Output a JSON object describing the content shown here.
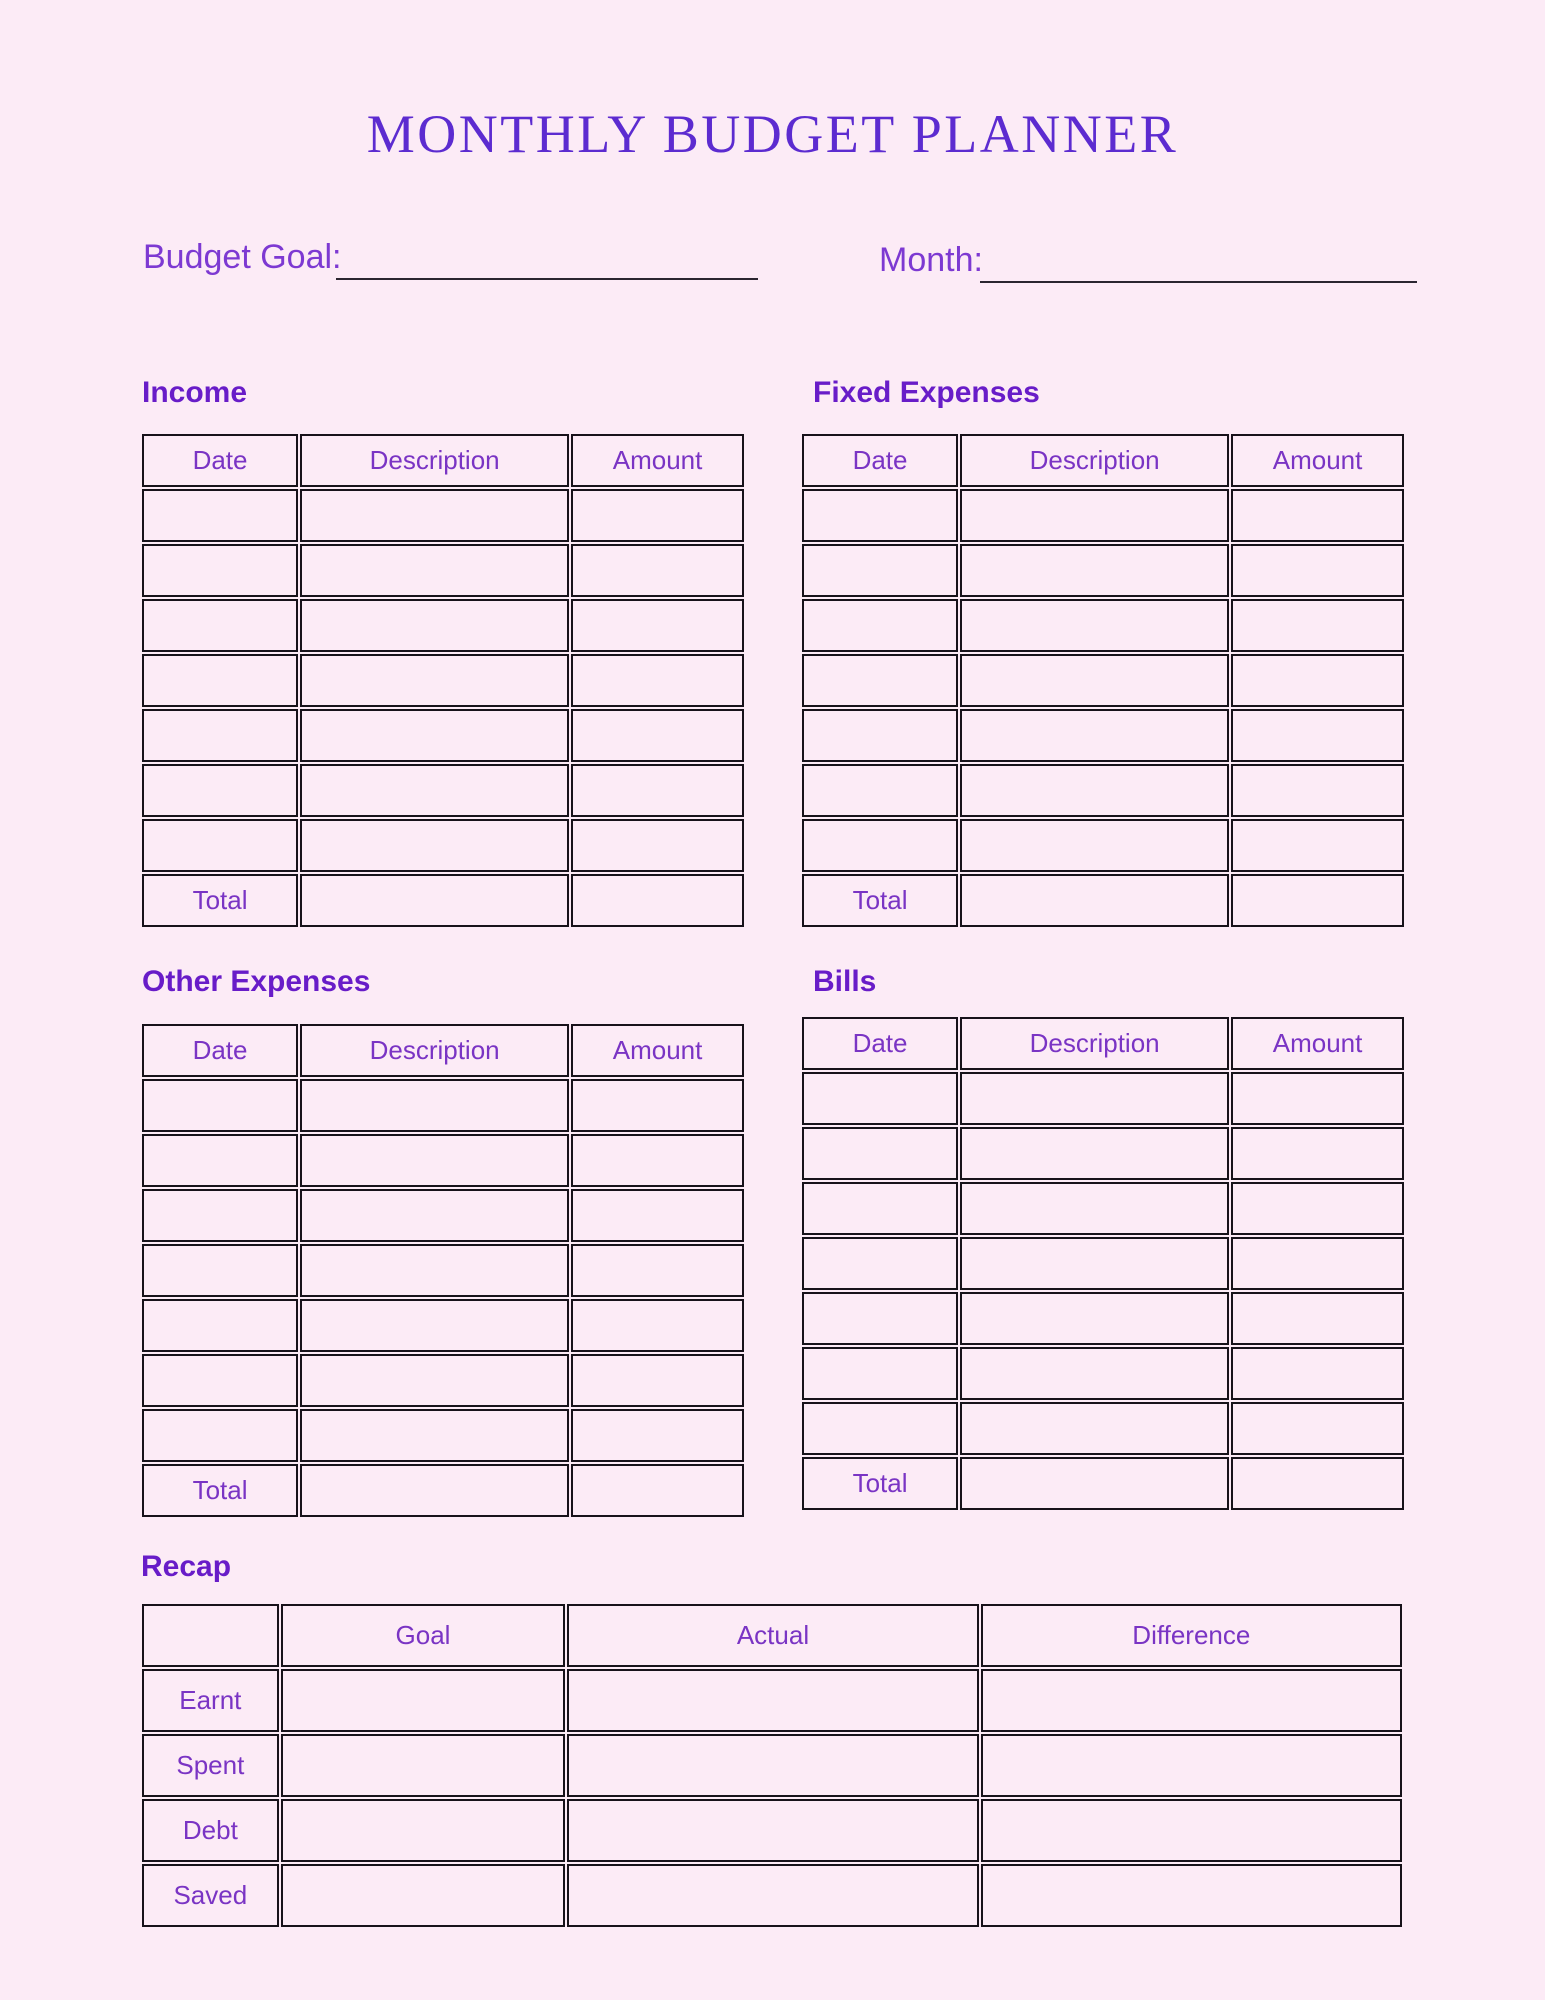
{
  "page_title": "MONTHLY BUDGET PLANNER",
  "header_fields": {
    "budget_goal": {
      "label": "Budget Goal:",
      "value": ""
    },
    "month": {
      "label": "Month:",
      "value": ""
    }
  },
  "sections": [
    {
      "heading": "Income",
      "columns": [
        "Date",
        "Description",
        "Amount"
      ],
      "rows": [
        [
          "",
          "",
          ""
        ],
        [
          "",
          "",
          ""
        ],
        [
          "",
          "",
          ""
        ],
        [
          "",
          "",
          ""
        ],
        [
          "",
          "",
          ""
        ],
        [
          "",
          "",
          ""
        ],
        [
          "",
          "",
          ""
        ],
        [
          "Total",
          "",
          ""
        ]
      ]
    },
    {
      "heading": "Fixed Expenses",
      "columns": [
        "Date",
        "Description",
        "Amount"
      ],
      "rows": [
        [
          "",
          "",
          ""
        ],
        [
          "",
          "",
          ""
        ],
        [
          "",
          "",
          ""
        ],
        [
          "",
          "",
          ""
        ],
        [
          "",
          "",
          ""
        ],
        [
          "",
          "",
          ""
        ],
        [
          "",
          "",
          ""
        ],
        [
          "Total",
          "",
          ""
        ]
      ]
    },
    {
      "heading": "Other Expenses",
      "columns": [
        "Date",
        "Description",
        "Amount"
      ],
      "rows": [
        [
          "",
          "",
          ""
        ],
        [
          "",
          "",
          ""
        ],
        [
          "",
          "",
          ""
        ],
        [
          "",
          "",
          ""
        ],
        [
          "",
          "",
          ""
        ],
        [
          "",
          "",
          ""
        ],
        [
          "",
          "",
          ""
        ],
        [
          "Total",
          "",
          ""
        ]
      ]
    },
    {
      "heading": "Bills",
      "columns": [
        "Date",
        "Description",
        "Amount"
      ],
      "rows": [
        [
          "",
          "",
          ""
        ],
        [
          "",
          "",
          ""
        ],
        [
          "",
          "",
          ""
        ],
        [
          "",
          "",
          ""
        ],
        [
          "",
          "",
          ""
        ],
        [
          "",
          "",
          ""
        ],
        [
          "",
          "",
          ""
        ],
        [
          "Total",
          "",
          ""
        ]
      ]
    }
  ],
  "recap": {
    "heading": "Recap",
    "columns": [
      "",
      "Goal",
      "Actual",
      "Difference"
    ],
    "rows": [
      [
        "Earnt",
        "",
        "",
        ""
      ],
      [
        "Spent",
        "",
        "",
        ""
      ],
      [
        "Debt",
        "",
        "",
        ""
      ],
      [
        "Saved",
        "",
        "",
        ""
      ]
    ]
  },
  "colors": {
    "background": "#fcebf6",
    "title_text": "#5c2bd0",
    "section_heading_text": "#681cc8",
    "field_label_text": "#7d39d2",
    "table_text": "#7a34c4",
    "table_border": "#17121a",
    "underline": "#2b2530"
  }
}
